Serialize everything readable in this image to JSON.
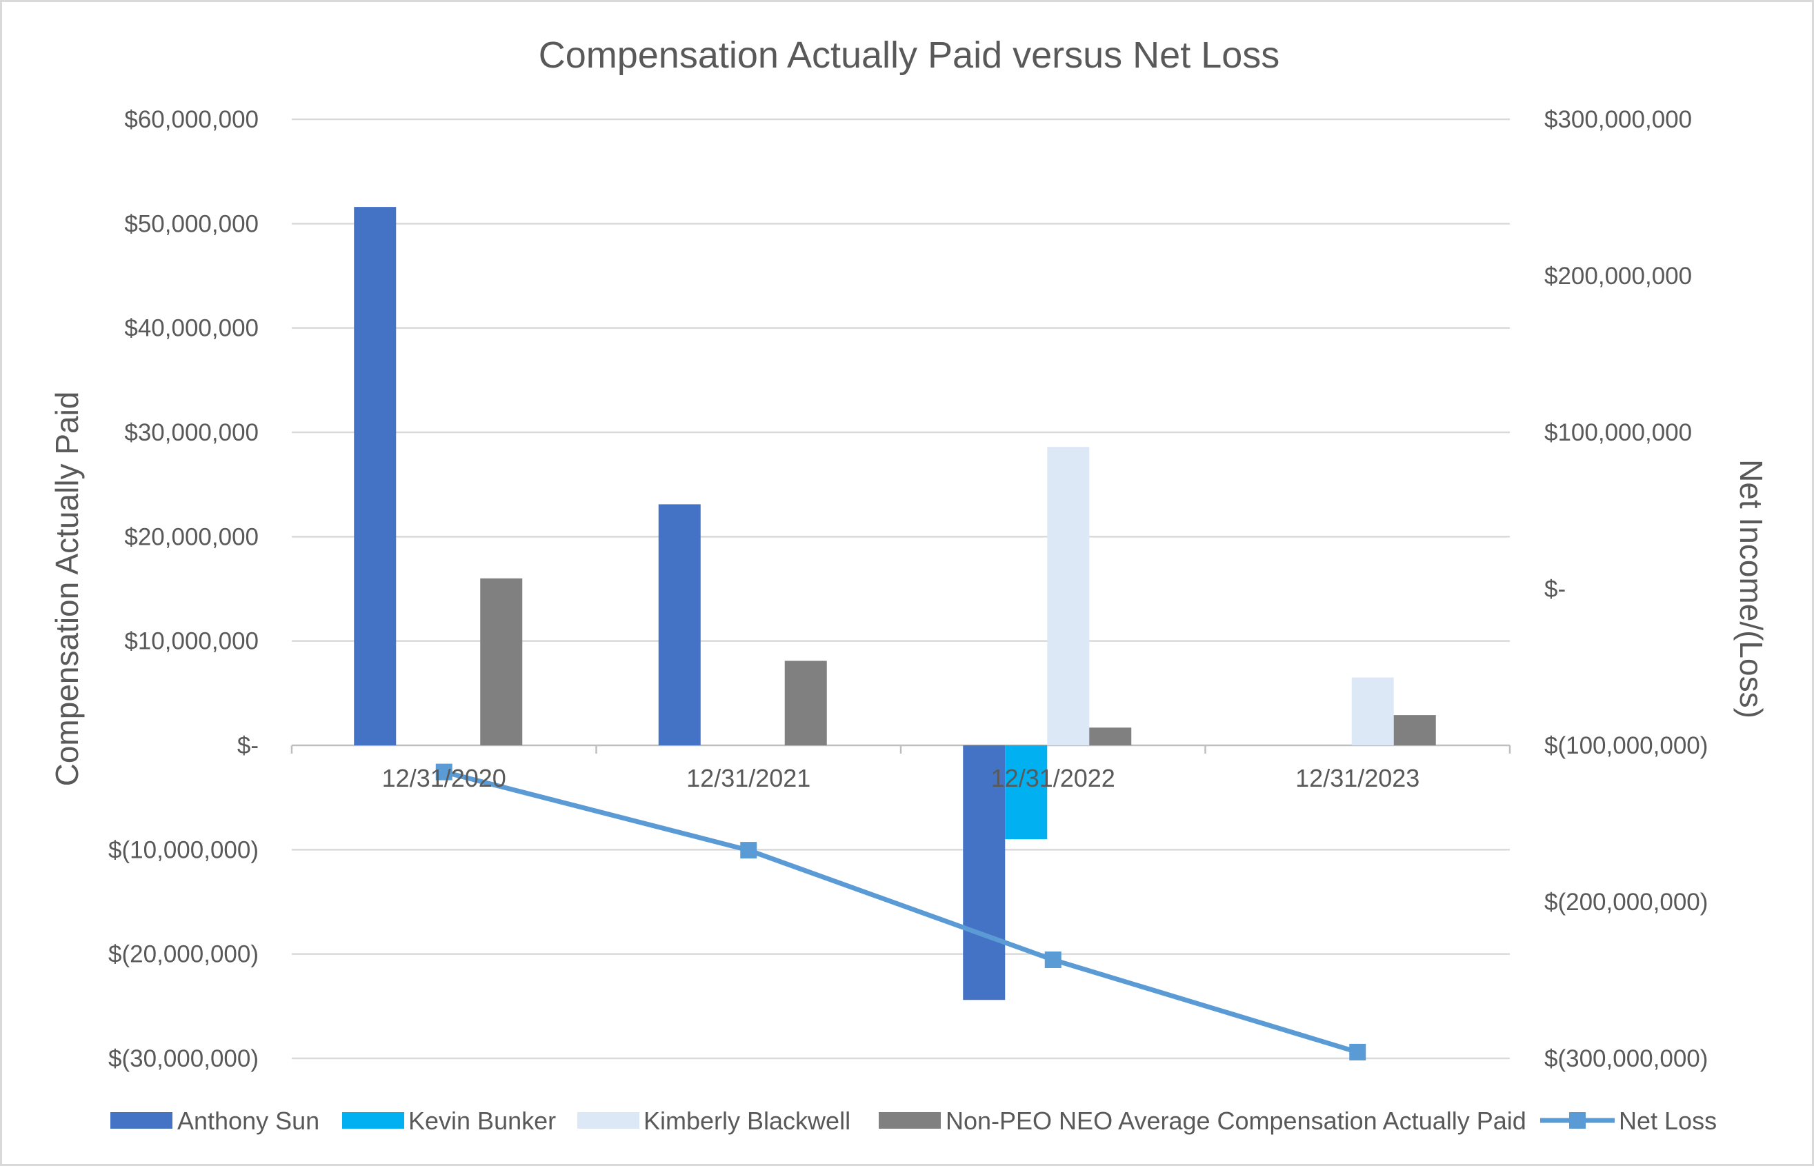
{
  "chart_data": {
    "type": "bar",
    "title": "Compensation Actually Paid versus Net Loss",
    "categories": [
      "12/31/2020",
      "12/31/2021",
      "12/31/2022",
      "12/31/2023"
    ],
    "ylabel": "Compensation Actually Paid",
    "y2label": "Net Income/(Loss)",
    "ylim": [
      -30000000,
      60000000
    ],
    "y2lim": [
      -300000000,
      300000000
    ],
    "yticks": [
      {
        "value": 60000000,
        "label": "$60,000,000"
      },
      {
        "value": 50000000,
        "label": "$50,000,000"
      },
      {
        "value": 40000000,
        "label": "$40,000,000"
      },
      {
        "value": 30000000,
        "label": "$30,000,000"
      },
      {
        "value": 20000000,
        "label": "$20,000,000"
      },
      {
        "value": 10000000,
        "label": "$10,000,000"
      },
      {
        "value": 0,
        "label": "$-"
      },
      {
        "value": -10000000,
        "label": "$(10,000,000)"
      },
      {
        "value": -20000000,
        "label": "$(20,000,000)"
      },
      {
        "value": -30000000,
        "label": "$(30,000,000)"
      }
    ],
    "y2ticks": [
      {
        "value": 300000000,
        "label": "$300,000,000"
      },
      {
        "value": 200000000,
        "label": "$200,000,000"
      },
      {
        "value": 100000000,
        "label": "$100,000,000"
      },
      {
        "value": 0,
        "label": "$-"
      },
      {
        "value": -100000000,
        "label": "$(100,000,000)"
      },
      {
        "value": -200000000,
        "label": "$(200,000,000)"
      },
      {
        "value": -300000000,
        "label": "$(300,000,000)"
      }
    ],
    "series": [
      {
        "name": "Anthony Sun",
        "kind": "bar",
        "axis": "left",
        "color": "#4472c4",
        "values": [
          51600000,
          23100000,
          -24400000,
          null
        ]
      },
      {
        "name": "Kevin Bunker",
        "kind": "bar",
        "axis": "left",
        "color": "#00b0f0",
        "values": [
          null,
          null,
          -9000000,
          null
        ]
      },
      {
        "name": "Kimberly Blackwell",
        "kind": "bar",
        "axis": "left",
        "color": "#dde8f6",
        "values": [
          null,
          null,
          28600000,
          6500000
        ]
      },
      {
        "name": "Non-PEO NEO Average Compensation Actually Paid",
        "kind": "bar",
        "axis": "left",
        "color": "#808080",
        "values": [
          16000000,
          8100000,
          1700000,
          2900000
        ]
      },
      {
        "name": "Net Loss",
        "kind": "line",
        "axis": "right",
        "color": "#5b9bd5",
        "marker": "square",
        "values": [
          -117000000,
          -167000000,
          -237000000,
          -296000000
        ]
      }
    ],
    "legend": "bottom",
    "grid": true
  }
}
